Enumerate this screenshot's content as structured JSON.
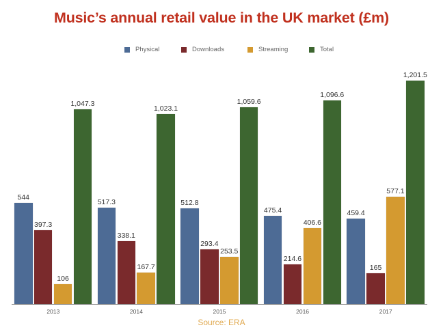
{
  "title": "Music’s annual retail value in the UK market (£m)",
  "source": "Source: ERA",
  "legend": [
    {
      "label": "Physical",
      "color": "#4d6b95"
    },
    {
      "label": "Downloads",
      "color": "#7a2a2c"
    },
    {
      "label": "Streaming",
      "color": "#d49a30"
    },
    {
      "label": "Total",
      "color": "#3d6630"
    }
  ],
  "chart_data": {
    "type": "bar",
    "title": "Music’s annual retail value in the UK market (£m)",
    "xlabel": "",
    "ylabel": "",
    "categories": [
      "2013",
      "2014",
      "2015",
      "2016",
      "2017"
    ],
    "series": [
      {
        "name": "Physical",
        "color": "#4d6b95",
        "values": [
          544,
          517.3,
          512.8,
          475.4,
          459.4
        ],
        "labels": [
          "544",
          "517.3",
          "512.8",
          "475.4",
          "459.4"
        ]
      },
      {
        "name": "Downloads",
        "color": "#7a2a2c",
        "values": [
          397.3,
          338.1,
          293.4,
          214.6,
          165
        ],
        "labels": [
          "397.3",
          "338.1",
          "293.4",
          "214.6",
          "165"
        ]
      },
      {
        "name": "Streaming",
        "color": "#d49a30",
        "values": [
          106,
          167.7,
          253.5,
          406.6,
          577.1
        ],
        "labels": [
          "106",
          "167.7",
          "253.5",
          "406.6",
          "577.1"
        ]
      },
      {
        "name": "Total",
        "color": "#3d6630",
        "values": [
          1047.3,
          1023.1,
          1059.6,
          1096.6,
          1201.5
        ],
        "labels": [
          "1,047.3",
          "1,023.1",
          "1,059.6",
          "1,096.6",
          "1,201.5"
        ]
      }
    ],
    "ylim": [
      0,
      1201.5
    ],
    "grid": false,
    "legend_position": "top",
    "annotations": [
      "Source: ERA"
    ]
  }
}
